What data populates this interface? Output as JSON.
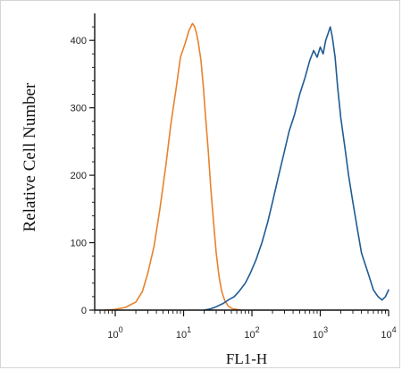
{
  "chart_data": {
    "type": "line",
    "title": "",
    "xlabel": "FL1-H",
    "ylabel": "Relative Cell Number",
    "x_scale": "log",
    "xlim": [
      0.5,
      10000
    ],
    "ylim": [
      0,
      440
    ],
    "x_ticks": [
      {
        "value": 1,
        "base": "10",
        "exp": "0"
      },
      {
        "value": 10,
        "base": "10",
        "exp": "1"
      },
      {
        "value": 100,
        "base": "10",
        "exp": "2"
      },
      {
        "value": 1000,
        "base": "10",
        "exp": "3"
      },
      {
        "value": 10000,
        "base": "10",
        "exp": "4"
      }
    ],
    "y_ticks": [
      {
        "value": 0,
        "label": "0"
      },
      {
        "value": 100,
        "label": "100"
      },
      {
        "value": 200,
        "label": "200"
      },
      {
        "value": 300,
        "label": "300"
      },
      {
        "value": 400,
        "label": "400"
      }
    ],
    "grid": false,
    "legend": "none",
    "series": [
      {
        "color": "#e8822c",
        "x": [
          0.7,
          1.0,
          1.4,
          2.0,
          2.5,
          3.0,
          3.7,
          4.5,
          5.5,
          6.5,
          7.8,
          9.0,
          10.5,
          12.0,
          13.5,
          14.5,
          15.5,
          16.5,
          18.0,
          19.5,
          21.0,
          23.0,
          25.0,
          27.5,
          30.0,
          33.0,
          36.0,
          40.0,
          45.0,
          52.0,
          60.0,
          70.0
        ],
        "y": [
          0,
          1,
          4,
          12,
          28,
          55,
          95,
          150,
          215,
          275,
          330,
          375,
          395,
          415,
          425,
          420,
          410,
          395,
          370,
          330,
          285,
          235,
          180,
          130,
          85,
          50,
          28,
          14,
          6,
          2,
          1,
          0
        ]
      },
      {
        "color": "#1f5b93",
        "x": [
          20,
          25,
          30,
          38,
          45,
          55,
          65,
          80,
          95,
          115,
          140,
          170,
          200,
          240,
          290,
          350,
          420,
          500,
          600,
          700,
          800,
          900,
          1000,
          1100,
          1200,
          1300,
          1400,
          1500,
          1650,
          1800,
          2000,
          2300,
          2600,
          3000,
          3500,
          4000,
          5000,
          6000,
          7000,
          8000,
          9000,
          10000
        ],
        "y": [
          0,
          2,
          5,
          10,
          15,
          20,
          28,
          40,
          55,
          75,
          100,
          130,
          160,
          195,
          230,
          265,
          290,
          320,
          345,
          370,
          385,
          375,
          390,
          380,
          400,
          410,
          420,
          405,
          375,
          330,
          285,
          240,
          200,
          160,
          120,
          85,
          55,
          30,
          20,
          15,
          20,
          30
        ]
      }
    ]
  }
}
